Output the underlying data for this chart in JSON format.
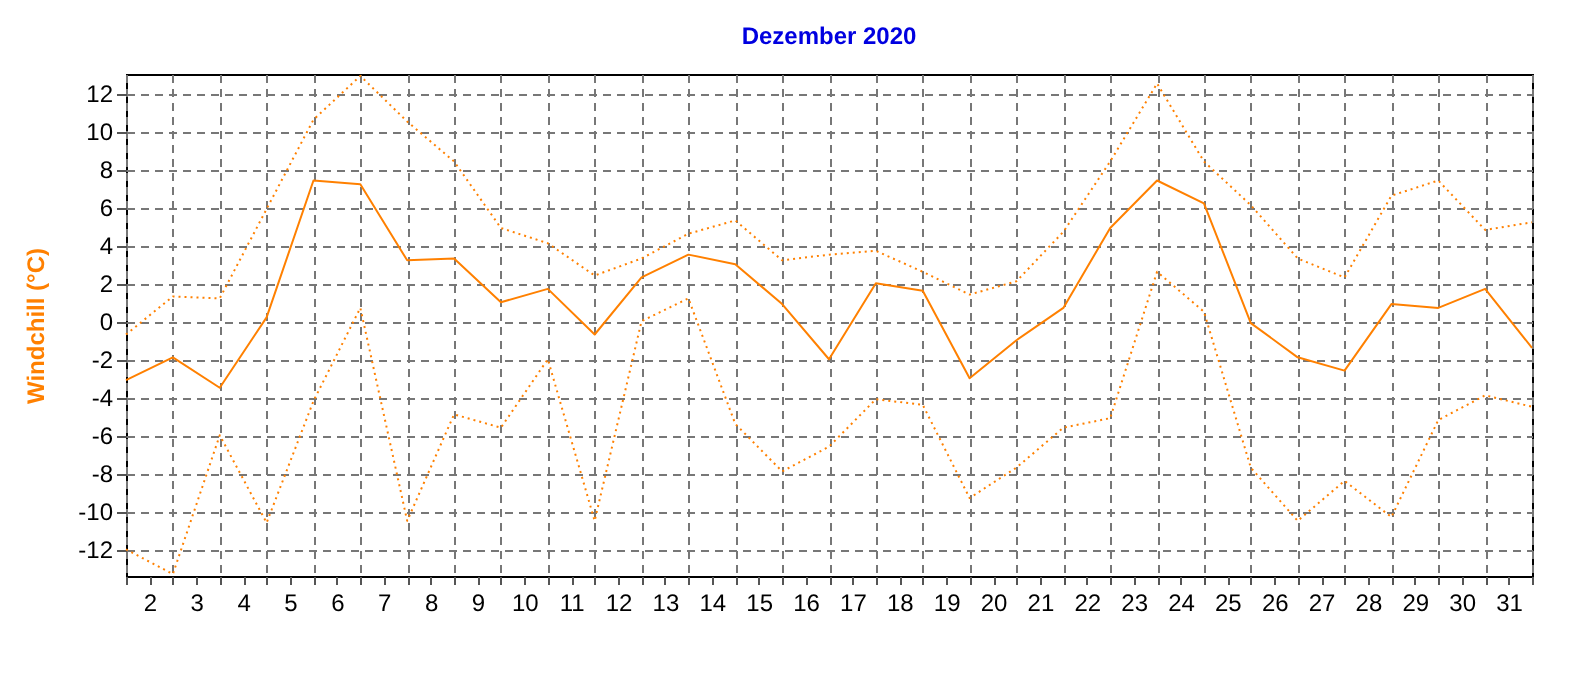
{
  "chart_data": {
    "type": "line",
    "title": "Dezember 2020",
    "ylabel": "Windchill  (°C)",
    "x": [
      1.5,
      2.5,
      3.5,
      4.5,
      5.5,
      6.5,
      7.5,
      8.5,
      9.5,
      10.5,
      11.5,
      12.5,
      13.5,
      14.5,
      15.5,
      16.5,
      17.5,
      18.5,
      19.5,
      20.5,
      21.5,
      22.5,
      23.5,
      24.5,
      25.5,
      26.5,
      27.5,
      28.5,
      29.5,
      30.5,
      31.5
    ],
    "series": [
      {
        "color": "#ff8000",
        "line_style": "dotted",
        "values": [
          -0.7,
          1.3,
          1.2,
          5.9,
          10.6,
          12.9,
          10.5,
          8.4,
          4.9,
          4.1,
          2.4,
          3.3,
          4.6,
          5.3,
          3.2,
          3.5,
          3.7,
          2.6,
          1.4,
          2.1,
          4.7,
          8.4,
          12.5,
          8.4,
          6.1,
          3.3,
          2.3,
          6.6,
          7.4,
          4.8,
          5.2
        ]
      },
      {
        "color": "#ff8000",
        "line_style": "solid",
        "values": [
          -3.1,
          -1.9,
          -3.5,
          0.2,
          7.4,
          7.2,
          3.2,
          3.3,
          1.0,
          1.7,
          -0.7,
          2.3,
          3.5,
          3.0,
          0.9,
          -2.0,
          2.0,
          1.6,
          -3.0,
          -1.0,
          0.7,
          4.9,
          7.4,
          6.2,
          -0.1,
          -1.9,
          -2.6,
          0.9,
          0.7,
          1.7,
          -1.4
        ]
      },
      {
        "color": "#ff8000",
        "line_style": "dotted",
        "values": [
          -12.0,
          -13.3,
          -6.0,
          -10.6,
          -4.2,
          0.7,
          -10.5,
          -4.9,
          -5.6,
          -2.0,
          -10.5,
          0.0,
          1.2,
          -5.4,
          -7.9,
          -6.6,
          -4.1,
          -4.4,
          -9.3,
          -7.7,
          -5.6,
          -5.1,
          2.6,
          0.5,
          -7.7,
          -10.5,
          -8.4,
          -10.3,
          -5.2,
          -3.9,
          -4.5
        ]
      }
    ],
    "xlim": [
      1.5,
      31.5
    ],
    "xticks": [
      {
        "value": 1.5,
        "label": null
      },
      2,
      {
        "value": 2.5,
        "label": null
      },
      3,
      {
        "value": 3.5,
        "label": null
      },
      4,
      {
        "value": 4.5,
        "label": null
      },
      5,
      {
        "value": 5.5,
        "label": null
      },
      6,
      {
        "value": 6.5,
        "label": null
      },
      7,
      {
        "value": 7.5,
        "label": null
      },
      8,
      {
        "value": 8.5,
        "label": null
      },
      9,
      {
        "value": 9.5,
        "label": null
      },
      10,
      {
        "value": 10.5,
        "label": null
      },
      11,
      {
        "value": 11.5,
        "label": null
      },
      12,
      {
        "value": 12.5,
        "label": null
      },
      13,
      {
        "value": 13.5,
        "label": null
      },
      14,
      {
        "value": 14.5,
        "label": null
      },
      15,
      {
        "value": 15.5,
        "label": null
      },
      16,
      {
        "value": 16.5,
        "label": null
      },
      17,
      {
        "value": 17.5,
        "label": null
      },
      18,
      {
        "value": 18.5,
        "label": null
      },
      19,
      {
        "value": 19.5,
        "label": null
      },
      20,
      {
        "value": 20.5,
        "label": null
      },
      21,
      {
        "value": 21.5,
        "label": null
      },
      22,
      {
        "value": 22.5,
        "label": null
      },
      23,
      {
        "value": 23.5,
        "label": null
      },
      24,
      {
        "value": 24.5,
        "label": null
      },
      25,
      {
        "value": 25.5,
        "label": null
      },
      26,
      {
        "value": 26.5,
        "label": null
      },
      27,
      {
        "value": 27.5,
        "label": null
      },
      28,
      {
        "value": 28.5,
        "label": null
      },
      29,
      {
        "value": 29.5,
        "label": null
      },
      30,
      {
        "value": 30.5,
        "label": null
      },
      31,
      {
        "value": 31.5,
        "label": null
      }
    ],
    "ylim": [
      -13.4,
      13
    ],
    "yticks": [
      -12,
      -10,
      -8,
      -6,
      -4,
      -2,
      0,
      2,
      4,
      6,
      8,
      10,
      12
    ],
    "grid": true,
    "marker": "none"
  }
}
